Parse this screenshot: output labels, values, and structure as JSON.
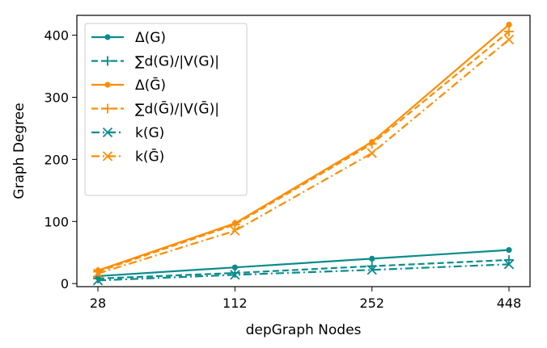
{
  "chart_data": {
    "type": "line",
    "x": [
      "28",
      "112",
      "252",
      "448"
    ],
    "xlabel": "depGraph Nodes",
    "ylabel": "Graph Degree",
    "ylim": [
      -5,
      432
    ],
    "yticks": [
      "0",
      "100",
      "200",
      "300",
      "400"
    ],
    "grid": false,
    "legend_position": "top-left",
    "series": [
      {
        "name": "Δ(G)",
        "values": [
          12,
          26,
          40,
          54
        ],
        "color": "#0a8c8c",
        "linestyle": "solid",
        "marker": "dot"
      },
      {
        "name": "∑d(G)/|V(G)|",
        "values": [
          8,
          17,
          28,
          38
        ],
        "color": "#0a8c8c",
        "linestyle": "dashed",
        "marker": "plus"
      },
      {
        "name": "Δ(Ḡ)",
        "values": [
          21,
          97,
          228,
          417
        ],
        "color": "#ff8c00",
        "linestyle": "solid",
        "marker": "dot"
      },
      {
        "name": "∑d(Ḡ)/|V(Ḡ)|",
        "values": [
          19,
          95,
          225,
          406
        ],
        "color": "#ff8c00",
        "linestyle": "dashed",
        "marker": "plus"
      },
      {
        "name": "k(G)",
        "values": [
          5,
          14,
          22,
          31
        ],
        "color": "#0a8c8c",
        "linestyle": "dashdot",
        "marker": "x"
      },
      {
        "name": "k(Ḡ)",
        "values": [
          16,
          85,
          210,
          393
        ],
        "color": "#ff8c00",
        "linestyle": "dashdot",
        "marker": "x"
      }
    ]
  }
}
